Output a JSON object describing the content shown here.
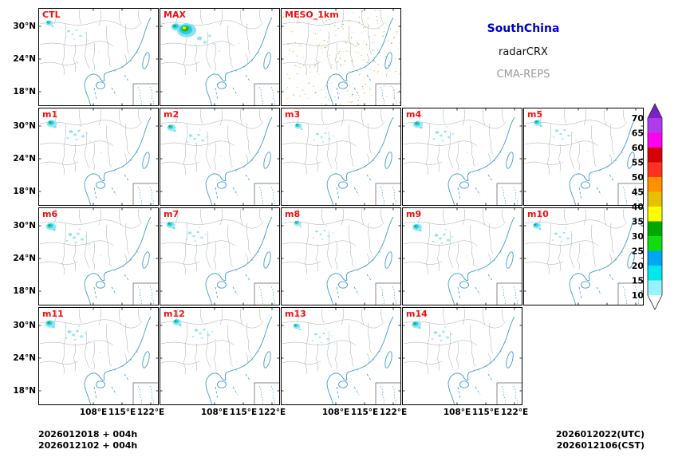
{
  "header": {
    "region_label": "SouthChina",
    "obs_label": "radarCRX",
    "model_label": "CMA-REPS"
  },
  "panels": [
    {
      "label": "CTL",
      "type": "control"
    },
    {
      "label": "MAX",
      "type": "max"
    },
    {
      "label": "MESO_1km",
      "type": "meso"
    },
    {
      "label": "m1",
      "type": "member"
    },
    {
      "label": "m2",
      "type": "member"
    },
    {
      "label": "m3",
      "type": "member"
    },
    {
      "label": "m4",
      "type": "member"
    },
    {
      "label": "m5",
      "type": "member"
    },
    {
      "label": "m6",
      "type": "member"
    },
    {
      "label": "m7",
      "type": "member"
    },
    {
      "label": "m8",
      "type": "member"
    },
    {
      "label": "m9",
      "type": "member"
    },
    {
      "label": "m10",
      "type": "member"
    },
    {
      "label": "m11",
      "type": "member"
    },
    {
      "label": "m12",
      "type": "member"
    },
    {
      "label": "m13",
      "type": "member"
    },
    {
      "label": "m14",
      "type": "member"
    }
  ],
  "axes": {
    "y_ticks": [
      "30°N",
      "24°N",
      "18°N"
    ],
    "x_ticks": [
      "108°E",
      "115°E",
      "122°E"
    ]
  },
  "colorbar": {
    "tick_values": [
      70,
      65,
      60,
      55,
      50,
      45,
      40,
      35,
      30,
      25,
      20,
      15,
      10
    ],
    "segment_colors_bottom_to_top": [
      "#97F3FF",
      "#00E8E8",
      "#00A6F6",
      "#10DC10",
      "#00A800",
      "#FFFF00",
      "#E7C000",
      "#FF9000",
      "#FF3020",
      "#D60000",
      "#FF00F0",
      "#B23AEE"
    ],
    "arrow_top_color": "#7A20C8",
    "arrow_bottom_color": "#FFFFFF"
  },
  "footer": {
    "init_lines": [
      "2026012018 + 004h",
      "2026012102 + 004h"
    ],
    "valid_utc": "2026012022(UTC)",
    "valid_cst": "2026012106(CST)"
  },
  "colors": {
    "panel_label_red": "#F01010",
    "title_blue": "#0000CD",
    "model_gray": "#9A9A9A",
    "coastline_blue": "#3E9CD0",
    "province_gray": "#ABABAB",
    "echo_cyan": "#30C9E8"
  },
  "chart_data": {
    "type": "heatmap",
    "title": "SouthChina radarCRX CMA-REPS ensemble panels",
    "panels": [
      "CTL",
      "MAX",
      "MESO_1km",
      "m1",
      "m2",
      "m3",
      "m4",
      "m5",
      "m6",
      "m7",
      "m8",
      "m9",
      "m10",
      "m11",
      "m12",
      "m13",
      "m14"
    ],
    "grid_layout": {
      "rows": 4,
      "cols": 5,
      "row_counts": [
        3,
        5,
        5,
        4
      ]
    },
    "x_tick_labels": [
      "108°E",
      "115°E",
      "122°E"
    ],
    "y_tick_labels": [
      "30°N",
      "24°N",
      "18°N"
    ],
    "colorbar": {
      "ticks": [
        10,
        15,
        20,
        25,
        30,
        35,
        40,
        45,
        50,
        55,
        60,
        65,
        70
      ],
      "orientation": "vertical-right",
      "extend": "both"
    },
    "init_labels": [
      "2026012018 + 004h",
      "2026012102 + 004h"
    ],
    "valid_labels": [
      "2026012022(UTC)",
      "2026012106(CST)"
    ],
    "legend_entries": [
      "SouthChina",
      "radarCRX",
      "CMA-REPS"
    ],
    "echo_summary": "cyan/blue radar echoes with small green cores clustered in the northwest quadrant of each panel; MAX panel strongest; MESO_1km panel shows widespread fine olive-green speckle"
  }
}
